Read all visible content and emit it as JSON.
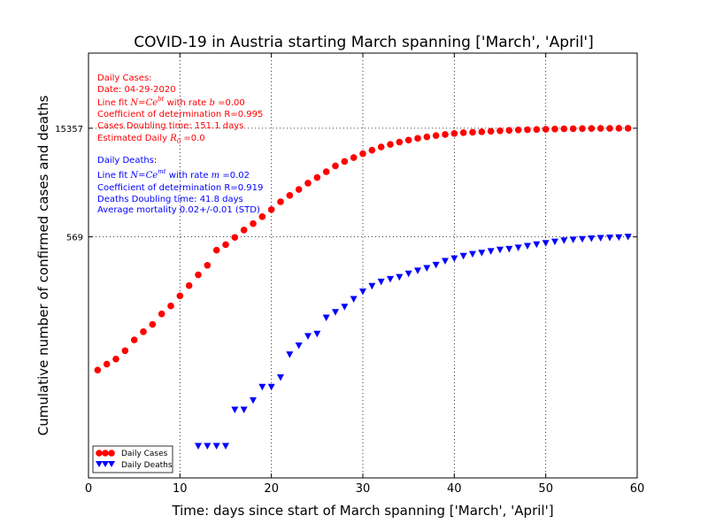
{
  "chart_data": {
    "type": "scatter",
    "title": "COVID-19 in Austria starting March spanning ['March', 'April']",
    "xlabel": "Time: days since start of March spanning ['March', 'April']",
    "ylabel": "Cumulative number of confirmed cases and deaths",
    "y_scale": "log",
    "xlim": [
      0,
      60
    ],
    "ylim": [
      0.38,
      150000
    ],
    "x_ticks": [
      "0",
      "10",
      "20",
      "30",
      "40",
      "50",
      "60"
    ],
    "y_ticks": [
      {
        "value": 569,
        "label": "569"
      },
      {
        "value": 15357,
        "label": "15357"
      }
    ],
    "grid": true,
    "legend_position": "lower-left",
    "series": [
      {
        "name": "Daily Cases",
        "color": "#ff0000",
        "marker": "circle",
        "x": [
          1,
          2,
          3,
          4,
          5,
          6,
          7,
          8,
          9,
          10,
          11,
          12,
          13,
          14,
          15,
          16,
          17,
          18,
          19,
          20,
          21,
          22,
          23,
          24,
          25,
          26,
          27,
          28,
          29,
          30,
          31,
          32,
          33,
          34,
          35,
          36,
          37,
          38,
          39,
          40,
          41,
          42,
          43,
          44,
          45,
          46,
          47,
          48,
          49,
          50,
          51,
          52,
          53,
          54,
          55,
          56,
          57,
          58,
          59
        ],
        "y": [
          10,
          12,
          14,
          18,
          25,
          32,
          40,
          55,
          70,
          95,
          130,
          180,
          240,
          380,
          450,
          560,
          700,
          850,
          1050,
          1300,
          1650,
          2000,
          2400,
          2900,
          3450,
          4100,
          4900,
          5600,
          6300,
          7100,
          7900,
          8700,
          9400,
          10100,
          10700,
          11300,
          11800,
          12300,
          12700,
          13100,
          13400,
          13600,
          13800,
          14000,
          14200,
          14400,
          14600,
          14700,
          14800,
          14900,
          15000,
          15100,
          15150,
          15200,
          15250,
          15280,
          15300,
          15330,
          15357
        ]
      },
      {
        "name": "Daily Deaths",
        "color": "#0000ff",
        "marker": "triangle-down",
        "x": [
          12,
          13,
          14,
          15,
          16,
          17,
          18,
          19,
          20,
          21,
          22,
          23,
          24,
          25,
          26,
          27,
          28,
          29,
          30,
          31,
          32,
          33,
          34,
          35,
          36,
          37,
          38,
          39,
          40,
          41,
          42,
          43,
          44,
          45,
          46,
          47,
          48,
          49,
          50,
          51,
          52,
          53,
          54,
          55,
          56,
          57,
          58,
          59
        ],
        "y": [
          1,
          1,
          1,
          1,
          3,
          3,
          4,
          6,
          6,
          8,
          16,
          21,
          28,
          30,
          49,
          58,
          68,
          86,
          108,
          128,
          146,
          158,
          168,
          186,
          204,
          220,
          243,
          273,
          295,
          319,
          337,
          350,
          368,
          384,
          393,
          410,
          431,
          452,
          470,
          491,
          510,
          522,
          530,
          542,
          549,
          555,
          560,
          569
        ]
      }
    ],
    "annotations": {
      "cases": [
        "Daily Cases:",
        "Date: 04-29-2020",
        "Line fit N = Ce^{bt} with rate b = 0.00",
        "Coefficient of determination R=0.995",
        "Cases Doubling time: 151.1 days",
        "Estimated Daily R_0 = 0.0"
      ],
      "deaths": [
        "Daily Deaths:",
        "Line fit N = Ce^{mt} with rate m = 0.02",
        "Coefficient of determination R=0.919",
        "Deaths Doubling time: 41.8 days",
        "Average mortality 0.02+/-0.01 (STD)"
      ]
    }
  },
  "legend": {
    "cases_label": "Daily Cases",
    "deaths_label": "Daily Deaths"
  },
  "annotations_text": {
    "cases_title": "Daily Cases:",
    "cases_date": "Date: 04-29-2020",
    "cases_fit_prefix": "Line fit ",
    "cases_fit_rate": " with rate ",
    "cases_fit_value": " =0.00",
    "cases_r": "Coefficient of determination R=0.995",
    "cases_doubling": "Cases Doubling time: 151.1 days",
    "cases_r0_prefix": "Estimated Daily ",
    "cases_r0_value": " =0.0",
    "deaths_title": "Daily Deaths:",
    "deaths_fit_prefix": "Line fit ",
    "deaths_fit_rate": " with rate ",
    "deaths_fit_value": " =0.02",
    "deaths_r": "Coefficient of determination R=0.919",
    "deaths_doubling": "Deaths Doubling time: 41.8 days",
    "deaths_mortality": "Average mortality 0.02+/-0.01 (STD)"
  },
  "colors": {
    "cases": "#ff0000",
    "deaths": "#0000ff"
  }
}
